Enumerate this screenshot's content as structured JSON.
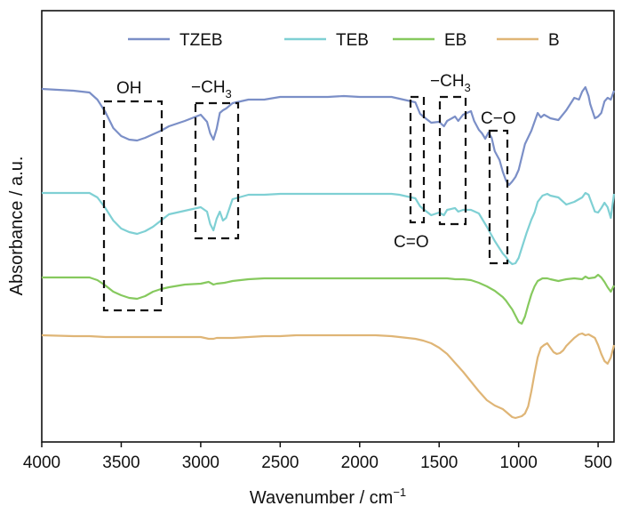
{
  "chart_data": {
    "type": "line",
    "title": "",
    "xlabel": "Wavenumber / cm⁻¹",
    "ylabel": "Absorbance / a.u.",
    "xlim": [
      4000,
      400
    ],
    "x_reversed": true,
    "y_ticks_shown": false,
    "x_ticks": [
      4000,
      3500,
      3000,
      2500,
      2000,
      1500,
      1000,
      500
    ],
    "x_tick_labels": [
      "4000",
      "3500",
      "3000",
      "2500",
      "2000",
      "1500",
      "1000",
      "500"
    ],
    "grid": false,
    "legend_position": "top",
    "series": [
      {
        "name": "TZEB",
        "color": "#7b8fc7",
        "x": [
          4000,
          3800,
          3700,
          3650,
          3600,
          3550,
          3500,
          3450,
          3400,
          3350,
          3300,
          3250,
          3200,
          3100,
          3000,
          2960,
          2940,
          2920,
          2900,
          2880,
          2860,
          2840,
          2800,
          2700,
          2600,
          2500,
          2400,
          2300,
          2200,
          2100,
          2000,
          1900,
          1800,
          1750,
          1700,
          1650,
          1620,
          1600,
          1550,
          1500,
          1470,
          1450,
          1400,
          1380,
          1350,
          1300,
          1280,
          1250,
          1230,
          1210,
          1190,
          1170,
          1150,
          1120,
          1100,
          1080,
          1060,
          1040,
          1020,
          1000,
          960,
          920,
          880,
          860,
          840,
          820,
          800,
          750,
          700,
          650,
          620,
          600,
          580,
          560,
          550,
          520,
          500,
          480,
          460,
          440,
          420,
          400
        ],
        "y": [
          100,
          102,
          104,
          112,
          126,
          144,
          153,
          157,
          158,
          155,
          151,
          147,
          142,
          136,
          129,
          137,
          150,
          157,
          145,
          127,
          124,
          122,
          116,
          112,
          112,
          109,
          109,
          109,
          109,
          108,
          109,
          109,
          109,
          111,
          113,
          115,
          128,
          131,
          138,
          137,
          142,
          136,
          131,
          136,
          129,
          125,
          136,
          146,
          150,
          156,
          149,
          155,
          170,
          180,
          193,
          203,
          208,
          204,
          199,
          191,
          162,
          147,
          127,
          132,
          129,
          131,
          133,
          135,
          124,
          110,
          112,
          103,
          98,
          108,
          117,
          133,
          131,
          127,
          114,
          110,
          112,
          102
        ]
      },
      {
        "name": "TEB",
        "color": "#7fd0d4",
        "x": [
          4000,
          3800,
          3700,
          3650,
          3600,
          3550,
          3500,
          3450,
          3400,
          3350,
          3300,
          3250,
          3200,
          3100,
          3000,
          2960,
          2940,
          2920,
          2900,
          2880,
          2860,
          2840,
          2800,
          2700,
          2600,
          2500,
          2400,
          2300,
          2200,
          2100,
          2000,
          1900,
          1800,
          1750,
          1700,
          1650,
          1620,
          1600,
          1550,
          1500,
          1470,
          1450,
          1400,
          1380,
          1350,
          1300,
          1250,
          1200,
          1150,
          1100,
          1080,
          1060,
          1040,
          1020,
          1000,
          980,
          950,
          920,
          900,
          880,
          850,
          820,
          800,
          750,
          700,
          650,
          620,
          600,
          580,
          560,
          550,
          520,
          500,
          480,
          460,
          440,
          420,
          400
        ],
        "y": [
          217,
          217,
          217,
          222,
          234,
          248,
          257,
          261,
          263,
          260,
          255,
          248,
          241,
          237,
          233,
          238,
          252,
          259,
          246,
          238,
          248,
          245,
          224,
          219,
          219,
          218,
          218,
          218,
          218,
          218,
          218,
          218,
          218,
          219,
          221,
          223,
          232,
          235,
          242,
          239,
          242,
          236,
          234,
          238,
          236,
          236,
          240,
          255,
          271,
          285,
          289,
          294,
          297,
          296,
          290,
          279,
          262,
          247,
          239,
          227,
          220,
          218,
          220,
          222,
          230,
          227,
          224,
          222,
          217,
          219,
          224,
          238,
          239,
          234,
          228,
          233,
          245,
          218
        ]
      },
      {
        "name": "EB",
        "color": "#86c95e",
        "x": [
          4000,
          3800,
          3700,
          3650,
          3600,
          3550,
          3500,
          3450,
          3400,
          3350,
          3300,
          3250,
          3200,
          3100,
          3000,
          2950,
          2920,
          2900,
          2850,
          2800,
          2700,
          2600,
          2500,
          2400,
          2300,
          2200,
          2100,
          2000,
          1900,
          1800,
          1700,
          1600,
          1500,
          1450,
          1400,
          1350,
          1300,
          1250,
          1200,
          1150,
          1100,
          1080,
          1060,
          1040,
          1020,
          1000,
          980,
          960,
          940,
          920,
          900,
          880,
          850,
          820,
          800,
          750,
          700,
          650,
          600,
          580,
          560,
          520,
          500,
          480,
          460,
          440,
          420,
          400
        ],
        "y": [
          312,
          312,
          312,
          315,
          321,
          328,
          332,
          335,
          336,
          333,
          328,
          325,
          323,
          320,
          319,
          317,
          320,
          319,
          318,
          316,
          314,
          313,
          313,
          313,
          313,
          313,
          313,
          313,
          313,
          313,
          313,
          313,
          313,
          313,
          314,
          314,
          315,
          318,
          322,
          327,
          334,
          338,
          343,
          348,
          355,
          362,
          364,
          356,
          343,
          331,
          322,
          316,
          313,
          313,
          314,
          316,
          314,
          313,
          314,
          311,
          313,
          312,
          309,
          312,
          317,
          323,
          328,
          321
        ]
      },
      {
        "name": "B",
        "color": "#dfb576",
        "x": [
          4000,
          3800,
          3700,
          3600,
          3500,
          3400,
          3300,
          3200,
          3100,
          3000,
          2950,
          2920,
          2900,
          2850,
          2800,
          2700,
          2600,
          2500,
          2400,
          2300,
          2200,
          2100,
          2000,
          1900,
          1800,
          1750,
          1700,
          1650,
          1600,
          1550,
          1500,
          1450,
          1400,
          1350,
          1300,
          1250,
          1200,
          1150,
          1100,
          1080,
          1060,
          1040,
          1020,
          1000,
          980,
          960,
          940,
          920,
          900,
          880,
          860,
          840,
          820,
          800,
          780,
          760,
          740,
          720,
          700,
          650,
          620,
          600,
          580,
          560,
          540,
          520,
          500,
          480,
          460,
          440,
          420,
          400
        ],
        "y": [
          377,
          378,
          378,
          379,
          379,
          379,
          379,
          379,
          379,
          379,
          381,
          381,
          380,
          380,
          380,
          379,
          378,
          378,
          377,
          377,
          377,
          377,
          377,
          377,
          378,
          379,
          380,
          381,
          383,
          386,
          391,
          398,
          408,
          418,
          429,
          440,
          450,
          456,
          460,
          463,
          466,
          469,
          470,
          469,
          468,
          465,
          457,
          440,
          420,
          402,
          391,
          388,
          386,
          391,
          396,
          398,
          397,
          394,
          389,
          380,
          376,
          375,
          377,
          376,
          378,
          380,
          388,
          398,
          406,
          409,
          402,
          388
        ]
      }
    ],
    "annotations": [
      {
        "label": "OH",
        "x_range": [
          3620,
          3250
        ]
      },
      {
        "label": "−CH3",
        "x_range": [
          3030,
          2770
        ]
      },
      {
        "label": "C=O",
        "x_range": [
          1680,
          1600
        ]
      },
      {
        "label": "−CH3",
        "x_range": [
          1490,
          1330
        ]
      },
      {
        "label": "C−O",
        "x_range": [
          1180,
          1060
        ]
      }
    ]
  },
  "annotation_texts": {
    "oh": "OH",
    "ch3_upper_left_main": "−CH",
    "ch3_upper_left_sub": "3",
    "ch3_right_main": "−CH",
    "ch3_right_sub": "3",
    "co_double": "C=O",
    "co_single": "C−O"
  },
  "axis_texts": {
    "xlabel_main": "Wavenumber / cm",
    "xlabel_sup": "−1",
    "ylabel": "Absorbance / a.u."
  }
}
